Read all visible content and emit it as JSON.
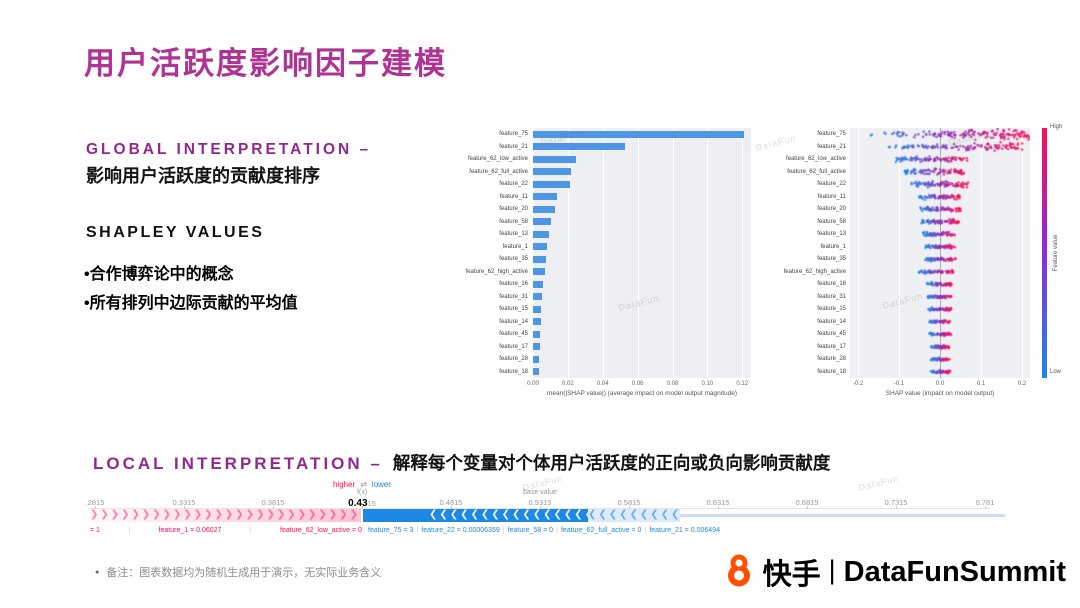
{
  "slide": {
    "title": "用户活跃度影响因子建模",
    "global_heading": "GLOBAL INTERPRETATION –",
    "global_subheading": "影响用户活跃度的贡献度排序",
    "shapley_heading": "SHAPLEY VALUES",
    "bullets": [
      "•合作博弈论中的概念",
      "•所有排列中边际贡献的平均值"
    ],
    "local_heading": "LOCAL INTERPRETATION –",
    "local_desc": "解释每个变量对个体用户活跃度的正向或负向影响贡献度",
    "note_bullet": "●",
    "note": "备注：图表数据均为随机生成用于演示，无实际业务含义",
    "watermark": "DataFun",
    "footer": {
      "brand": "快手",
      "divider": "|",
      "event": "DataFunSummit"
    }
  },
  "colors": {
    "title": "#AE3392",
    "heading": "#90278E",
    "shap_red": "#FF0D57",
    "shap_blue": "#1E88E5",
    "bar_blue": "#4E96E4",
    "kuaishou_orange": "#FF5000"
  },
  "chart_data": [
    {
      "type": "bar",
      "orientation": "horizontal",
      "xlabel": "mean(|SHAP value|) (average impact on model output magnitude)",
      "xlim": [
        0,
        0.125
      ],
      "xticks": [
        0,
        0.02,
        0.04,
        0.06,
        0.08,
        0.1,
        0.12
      ],
      "categories": [
        "feature_75",
        "feature_21",
        "feature_62_low_active",
        "feature_62_full_active",
        "feature_22",
        "feature_11",
        "feature_20",
        "feature_58",
        "feature_13",
        "feature_1",
        "feature_35",
        "feature_62_high_active",
        "feature_16",
        "feature_31",
        "feature_15",
        "feature_14",
        "feature_45",
        "feature_17",
        "feature_28",
        "feature_18"
      ],
      "values": [
        0.121,
        0.053,
        0.0245,
        0.022,
        0.0215,
        0.0135,
        0.0125,
        0.0105,
        0.009,
        0.008,
        0.0075,
        0.007,
        0.0055,
        0.005,
        0.0048,
        0.0045,
        0.0042,
        0.004,
        0.0035,
        0.0033
      ],
      "bar_color": "#4E96E4",
      "grid": true
    },
    {
      "type": "scatter",
      "variant": "shap-beeswarm",
      "xlabel": "SHAP value (impact on model output)",
      "xlim": [
        -0.22,
        0.22
      ],
      "xticks": [
        -0.2,
        -0.1,
        0,
        0.1,
        0.2
      ],
      "features": [
        "feature_75",
        "feature_21",
        "feature_62_low_active",
        "feature_62_full_active",
        "feature_22",
        "feature_11",
        "feature_20",
        "feature_58",
        "feature_13",
        "feature_1",
        "feature_35",
        "feature_62_high_active",
        "feature_16",
        "feature_31",
        "feature_15",
        "feature_14",
        "feature_45",
        "feature_17",
        "feature_28",
        "feature_18"
      ],
      "colorbar": {
        "top": "High",
        "bottom": "Low",
        "label": "Feature value",
        "high_color": "#FF0D57",
        "low_color": "#1E88E5"
      },
      "rows": [
        {
          "lo": -0.2,
          "hi": 0.22,
          "n": 150,
          "jit": 7.5,
          "skew": 0.55
        },
        {
          "lo": -0.13,
          "hi": 0.2,
          "n": 120,
          "jit": 6,
          "skew": 0.7
        },
        {
          "lo": -0.11,
          "hi": 0.07,
          "n": 90,
          "jit": 4,
          "skew": 1
        },
        {
          "lo": -0.09,
          "hi": 0.06,
          "n": 85,
          "jit": 4,
          "skew": 1
        },
        {
          "lo": -0.07,
          "hi": 0.07,
          "n": 85,
          "jit": 4,
          "skew": 1
        },
        {
          "lo": -0.05,
          "hi": 0.05,
          "n": 70,
          "jit": 3.2,
          "skew": 1
        },
        {
          "lo": -0.05,
          "hi": 0.05,
          "n": 70,
          "jit": 3.2,
          "skew": 1
        },
        {
          "lo": -0.045,
          "hi": 0.045,
          "n": 65,
          "jit": 3,
          "skew": 1
        },
        {
          "lo": -0.04,
          "hi": 0.04,
          "n": 65,
          "jit": 3,
          "skew": 1
        },
        {
          "lo": -0.035,
          "hi": 0.035,
          "n": 60,
          "jit": 2.6,
          "skew": 1
        },
        {
          "lo": -0.035,
          "hi": 0.04,
          "n": 60,
          "jit": 2.6,
          "skew": 1
        },
        {
          "lo": -0.05,
          "hi": 0.035,
          "n": 60,
          "jit": 2.6,
          "skew": 1
        },
        {
          "lo": -0.03,
          "hi": 0.03,
          "n": 55,
          "jit": 2.2,
          "skew": 1
        },
        {
          "lo": -0.03,
          "hi": 0.03,
          "n": 55,
          "jit": 2.2,
          "skew": 1
        },
        {
          "lo": -0.03,
          "hi": 0.028,
          "n": 55,
          "jit": 2.2,
          "skew": 1
        },
        {
          "lo": -0.025,
          "hi": 0.025,
          "n": 50,
          "jit": 2,
          "skew": 1
        },
        {
          "lo": -0.025,
          "hi": 0.027,
          "n": 50,
          "jit": 2,
          "skew": 1
        },
        {
          "lo": -0.022,
          "hi": 0.022,
          "n": 50,
          "jit": 2,
          "skew": 1
        },
        {
          "lo": -0.02,
          "hi": 0.022,
          "n": 48,
          "jit": 1.8,
          "skew": 1
        },
        {
          "lo": -0.02,
          "hi": 0.025,
          "n": 48,
          "jit": 1.8,
          "skew": 1
        }
      ]
    },
    {
      "type": "force",
      "ticks": [
        ".2815",
        "0.3315",
        "0.3815",
        "0.4315",
        "0.4815",
        "0.5315",
        "0.5815",
        "0.6315",
        "0.6815",
        "0.7315",
        "0.781"
      ],
      "fx_index": 3,
      "fx_bold": "0.43",
      "fx_label": "f(x)",
      "base_index": 5,
      "base_label": "base value",
      "legend": {
        "higher": "higher",
        "arrows": "⇄",
        "lower": "lower"
      },
      "red_features": [
        "= 1",
        "feature_1 = 0.06027",
        "feature_62_low_active = 0"
      ],
      "blue_features": [
        "feature_75 = 3",
        "feature_22 = 0.00006359",
        "feature_58 = 0",
        "feature_62_full_active = 0",
        "feature_21 = 0.006494"
      ]
    }
  ]
}
